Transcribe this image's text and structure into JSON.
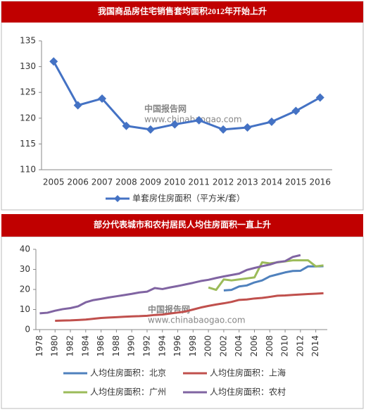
{
  "chart_data": [
    {
      "type": "line",
      "title": "我国商品房住宅销售套均面积2012年开始上升",
      "categories": [
        "2005",
        "2006",
        "2007",
        "2008",
        "2009",
        "2010",
        "2011",
        "2012",
        "2013",
        "2014",
        "2015",
        "2016"
      ],
      "series": [
        {
          "name": "单套房住房面积（平方米/套）",
          "color": "#4472c4",
          "values": [
            131,
            122.5,
            123.8,
            118.5,
            117.8,
            118.8,
            119.6,
            117.8,
            118.2,
            119.3,
            121.4,
            124
          ]
        }
      ],
      "ylim": [
        110,
        135
      ],
      "yticks": [
        110,
        115,
        120,
        125,
        130,
        135
      ],
      "grid": false,
      "markers": true,
      "annotations": [
        "中国报告网",
        "www.chinabaogao.com"
      ]
    },
    {
      "type": "line",
      "title": "部分代表城市和农村居民人均住房面积一直上升",
      "x": [
        1978,
        1979,
        1980,
        1981,
        1982,
        1983,
        1984,
        1985,
        1986,
        1987,
        1988,
        1989,
        1990,
        1991,
        1992,
        1993,
        1994,
        1995,
        1996,
        1997,
        1998,
        1999,
        2000,
        2001,
        2002,
        2003,
        2004,
        2005,
        2006,
        2007,
        2008,
        2009,
        2010,
        2011,
        2012,
        2013,
        2014,
        2015
      ],
      "series": [
        {
          "name": "人均住房面积：北京",
          "color": "#4f81bd",
          "values": [
            null,
            null,
            null,
            null,
            null,
            null,
            null,
            null,
            null,
            null,
            null,
            null,
            null,
            null,
            null,
            null,
            null,
            null,
            null,
            null,
            null,
            null,
            null,
            null,
            19.5,
            19.8,
            21.5,
            22,
            23.5,
            24.5,
            26.5,
            27.5,
            28.5,
            29.2,
            29.3,
            31.5,
            31.5,
            31.6
          ]
        },
        {
          "name": "人均住房面积：上海",
          "color": "#c0504d",
          "values": [
            null,
            null,
            4.4,
            4.5,
            4.6,
            4.8,
            5,
            5.4,
            5.8,
            6,
            6.2,
            6.4,
            6.6,
            6.7,
            6.9,
            7.3,
            7.5,
            8,
            8.5,
            9,
            10,
            11,
            11.8,
            12.5,
            13.1,
            13.8,
            14.8,
            15,
            15.5,
            15.8,
            16.3,
            16.9,
            17,
            17.3,
            17.5,
            17.7,
            17.9,
            18.1
          ]
        },
        {
          "name": "人均住房面积：广州",
          "color": "#9bbb59",
          "values": [
            null,
            null,
            null,
            null,
            null,
            null,
            null,
            null,
            null,
            null,
            null,
            null,
            null,
            null,
            null,
            null,
            null,
            null,
            null,
            null,
            null,
            null,
            21,
            19.8,
            25,
            24.5,
            25,
            25.5,
            26,
            33.5,
            33,
            33.5,
            34,
            34.5,
            34.5,
            34.5,
            31.5,
            32
          ]
        },
        {
          "name": "人均住房面积：农村",
          "color": "#8064a2",
          "values": [
            8.1,
            8.4,
            9.4,
            10.2,
            10.7,
            11.6,
            13.6,
            14.7,
            15.3,
            16,
            16.6,
            17.2,
            17.8,
            18.5,
            18.9,
            20.7,
            20.2,
            21,
            21.7,
            22.5,
            23.3,
            24.2,
            24.8,
            25.7,
            26.5,
            27.2,
            27.9,
            29.7,
            30.7,
            31.6,
            32.4,
            33.6,
            34.1,
            36.2,
            37.1,
            null,
            null,
            null
          ]
        }
      ],
      "xlim": [
        1977.5,
        2015.5
      ],
      "xticks": [
        1978,
        1980,
        1982,
        1984,
        1986,
        1988,
        1990,
        1992,
        1994,
        1996,
        1998,
        2000,
        2002,
        2004,
        2006,
        2008,
        2010,
        2012,
        2014
      ],
      "ylim": [
        0,
        40
      ],
      "yticks": [
        0,
        10,
        20,
        30,
        40
      ],
      "grid": false,
      "markers": false,
      "annotations": [
        "中国报告网",
        "www.chinabaogao.com"
      ]
    }
  ]
}
